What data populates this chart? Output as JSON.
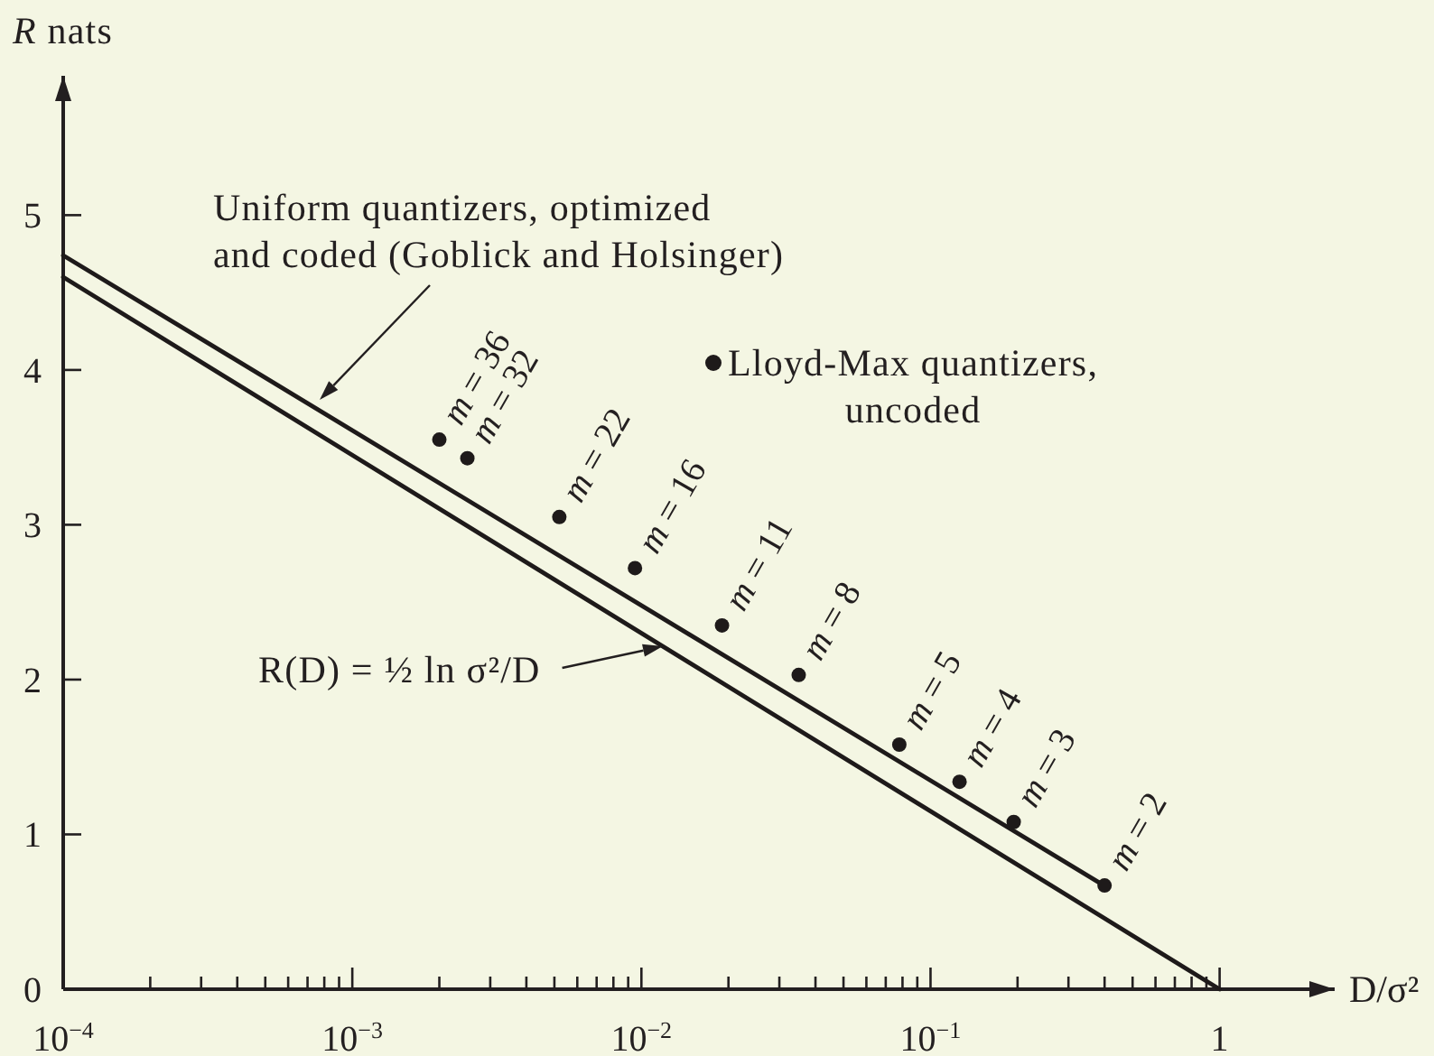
{
  "chart_data": {
    "type": "line",
    "xlabel": "D/σ²",
    "ylabel": "R nats",
    "log": "x",
    "xlim": [
      0.0001,
      2.5
    ],
    "ylim": [
      0,
      5.9
    ],
    "xticks": [
      {
        "value": 0.0001,
        "label": "10$^{−4}$"
      },
      {
        "value": 0.0002,
        "label": null
      },
      {
        "value": 0.0003,
        "label": null
      },
      {
        "value": 0.0004,
        "label": null
      },
      {
        "value": 0.0005,
        "label": null
      },
      {
        "value": 0.0006,
        "label": null
      },
      {
        "value": 0.0007,
        "label": null
      },
      {
        "value": 0.0008,
        "label": null
      },
      {
        "value": 0.0009,
        "label": null
      },
      {
        "value": 0.001,
        "label": "10$^{−3}$"
      },
      {
        "value": 0.002,
        "label": null
      },
      {
        "value": 0.003,
        "label": null
      },
      {
        "value": 0.004,
        "label": null
      },
      {
        "value": 0.005,
        "label": null
      },
      {
        "value": 0.006,
        "label": null
      },
      {
        "value": 0.007,
        "label": null
      },
      {
        "value": 0.008,
        "label": null
      },
      {
        "value": 0.009,
        "label": null
      },
      {
        "value": 0.01,
        "label": "10$^{−2}$"
      },
      {
        "value": 0.02,
        "label": null
      },
      {
        "value": 0.03,
        "label": null
      },
      {
        "value": 0.04,
        "label": null
      },
      {
        "value": 0.05,
        "label": null
      },
      {
        "value": 0.06,
        "label": null
      },
      {
        "value": 0.07,
        "label": null
      },
      {
        "value": 0.08,
        "label": null
      },
      {
        "value": 0.09,
        "label": null
      },
      {
        "value": 0.1,
        "label": "10$^{−1}$"
      },
      {
        "value": 0.2,
        "label": null
      },
      {
        "value": 0.3,
        "label": null
      },
      {
        "value": 0.4,
        "label": null
      },
      {
        "value": 0.5,
        "label": null
      },
      {
        "value": 0.6,
        "label": null
      },
      {
        "value": 0.7,
        "label": null
      },
      {
        "value": 0.8,
        "label": null
      },
      {
        "value": 0.9,
        "label": null
      },
      1
    ],
    "yticks": [
      0,
      1,
      2,
      3,
      4,
      5
    ],
    "legend": "top",
    "series": [
      {
        "name": "Uniform quantizers, optimized\nand coded (Goblick and Holsinger)",
        "color": "#1e1a1a",
        "x": [
          0.0001,
          0.39
        ],
        "values": [
          4.74,
          0.68
        ]
      },
      {
        "name": "R(D) = ½ ln σ²/D",
        "color": "#1e1a1a",
        "x": [
          0.0001,
          1
        ],
        "values": [
          4.6,
          0
        ]
      },
      {
        "name": "Lloyd-Max quantizers,\nuncoded",
        "type": "scatter",
        "marker": "circle",
        "color": "#1e1a1a",
        "x": [
          0.002,
          0.0025,
          0.0052,
          0.0095,
          0.019,
          0.035,
          0.078,
          0.126,
          0.194,
          0.4
        ],
        "values": [
          3.55,
          3.43,
          3.05,
          2.72,
          2.35,
          2.03,
          1.58,
          1.34,
          1.08,
          0.67
        ]
      }
    ],
    "annotations": [
      {
        "text": "m = 36",
        "x": 0.002,
        "y": 3.55
      },
      {
        "text": "m = 32",
        "x": 0.0025,
        "y": 3.43
      },
      {
        "text": "m = 22",
        "x": 0.0052,
        "y": 3.05
      },
      {
        "text": "m = 16",
        "x": 0.0095,
        "y": 2.72
      },
      {
        "text": "m = 11",
        "x": 0.019,
        "y": 2.35
      },
      {
        "text": "m = 8",
        "x": 0.035,
        "y": 2.03
      },
      {
        "text": "m = 5",
        "x": 0.078,
        "y": 1.58
      },
      {
        "text": "m = 4",
        "x": 0.126,
        "y": 1.34
      },
      {
        "text": "m = 3",
        "x": 0.194,
        "y": 1.08
      },
      {
        "text": "m = 2",
        "x": 0.4,
        "y": 0.67
      }
    ]
  }
}
